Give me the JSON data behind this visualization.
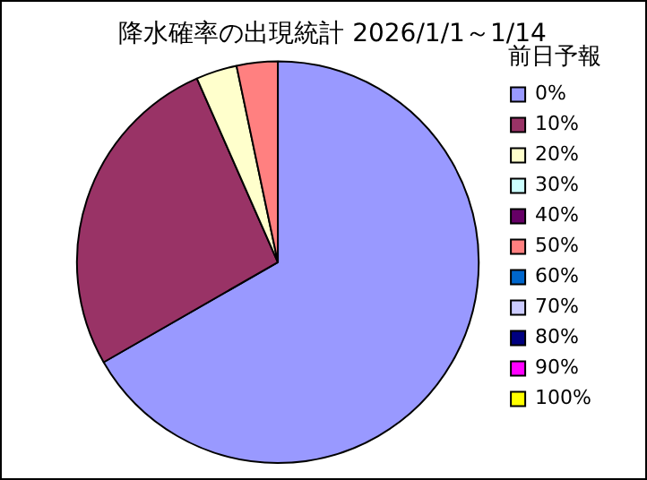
{
  "chart_data": {
    "type": "pie",
    "title": "降水確率の出現統計 2026/1/1～1/14",
    "legend_title": "前日予報",
    "categories": [
      "0%",
      "10%",
      "20%",
      "30%",
      "40%",
      "50%",
      "60%",
      "70%",
      "80%",
      "90%",
      "100%"
    ],
    "values": [
      66.7,
      26.7,
      3.3,
      0,
      0,
      3.3,
      0,
      0,
      0,
      0,
      0
    ],
    "colors": [
      "#9999ff",
      "#993366",
      "#ffffcc",
      "#ccffff",
      "#660066",
      "#ff8080",
      "#0066cc",
      "#ccccff",
      "#000080",
      "#ff00ff",
      "#ffff00"
    ],
    "legend": "right"
  }
}
